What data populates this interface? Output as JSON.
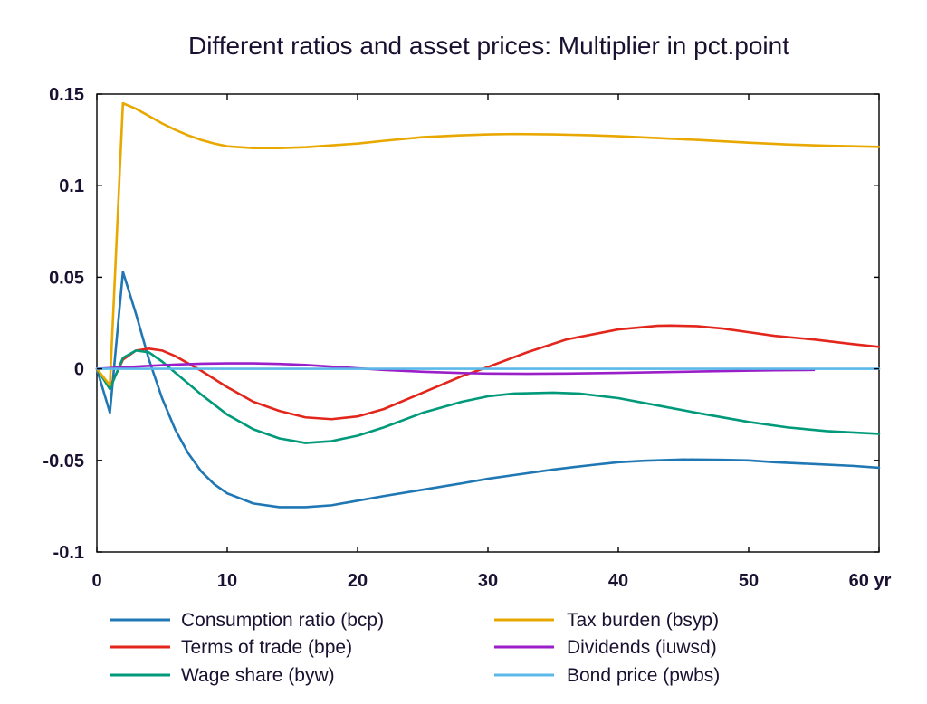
{
  "chart_data": {
    "type": "line",
    "title": "Different ratios and asset prices: Multiplier in pct.point",
    "xlabel": "",
    "ylabel": "",
    "xlim": [
      0,
      60
    ],
    "ylim": [
      -0.1,
      0.15
    ],
    "x_ticks": [
      0,
      10,
      20,
      30,
      40,
      50,
      60
    ],
    "x_tick_labels": [
      "0",
      "10",
      "20",
      "30",
      "40",
      "50",
      "60 yr"
    ],
    "y_ticks": [
      -0.1,
      -0.05,
      0,
      0.05,
      0.1,
      0.15
    ],
    "y_tick_labels": [
      "-0.1",
      "-0.05",
      "0",
      "0.05",
      "0.1",
      "0.15"
    ],
    "grid": false,
    "legend_position": "bottom",
    "series": [
      {
        "name": "Consumption ratio (bcp)",
        "color": "#1f77b4",
        "x": [
          0,
          1,
          2,
          3,
          4,
          5,
          6,
          7,
          8,
          9,
          10,
          12,
          14,
          16,
          18,
          20,
          22,
          25,
          28,
          30,
          32,
          35,
          38,
          40,
          42,
          45,
          48,
          50,
          52,
          55,
          58,
          60
        ],
        "y": [
          0,
          -0.024,
          0.053,
          0.03,
          0.005,
          -0.016,
          -0.033,
          -0.046,
          -0.056,
          -0.063,
          -0.068,
          -0.0735,
          -0.0755,
          -0.0755,
          -0.0745,
          -0.072,
          -0.0695,
          -0.066,
          -0.0625,
          -0.06,
          -0.058,
          -0.055,
          -0.0525,
          -0.051,
          -0.0502,
          -0.0495,
          -0.0497,
          -0.05,
          -0.051,
          -0.052,
          -0.053,
          -0.054
        ]
      },
      {
        "name": "Terms of trade (bpe)",
        "color": "#e3261b",
        "x": [
          0,
          1,
          2,
          3,
          4,
          5,
          6,
          8,
          10,
          12,
          14,
          16,
          18,
          20,
          22,
          25,
          28,
          30,
          33,
          36,
          40,
          43,
          44,
          46,
          48,
          50,
          52,
          55,
          58,
          60
        ],
        "y": [
          0,
          -0.01,
          0.005,
          0.01,
          0.011,
          0.01,
          0.007,
          -0.001,
          -0.01,
          -0.018,
          -0.023,
          -0.0265,
          -0.0275,
          -0.026,
          -0.022,
          -0.013,
          -0.004,
          0.001,
          0.009,
          0.016,
          0.0215,
          0.0235,
          0.0236,
          0.0233,
          0.022,
          0.02,
          0.018,
          0.016,
          0.0135,
          0.012
        ]
      },
      {
        "name": "Wage share (byw)",
        "color": "#00997a",
        "x": [
          0,
          1,
          2,
          3,
          4,
          5,
          6,
          8,
          10,
          12,
          14,
          16,
          18,
          20,
          22,
          25,
          28,
          30,
          32,
          35,
          37,
          40,
          43,
          46,
          50,
          53,
          56,
          60
        ],
        "y": [
          0,
          -0.011,
          0.006,
          0.01,
          0.009,
          0.004,
          -0.002,
          -0.014,
          -0.025,
          -0.033,
          -0.038,
          -0.0405,
          -0.0395,
          -0.0365,
          -0.032,
          -0.024,
          -0.018,
          -0.015,
          -0.0135,
          -0.013,
          -0.0135,
          -0.016,
          -0.02,
          -0.024,
          -0.029,
          -0.032,
          -0.034,
          -0.0355
        ]
      },
      {
        "name": "Tax burden (bsyp)",
        "color": "#e8a800",
        "x": [
          0,
          1,
          2,
          3,
          4,
          5,
          6,
          7,
          8,
          9,
          10,
          12,
          14,
          16,
          18,
          20,
          22,
          25,
          28,
          30,
          32,
          35,
          38,
          40,
          43,
          46,
          50,
          53,
          56,
          60
        ],
        "y": [
          0,
          -0.009,
          0.145,
          0.142,
          0.138,
          0.134,
          0.1305,
          0.1275,
          0.125,
          0.123,
          0.1215,
          0.1205,
          0.1205,
          0.121,
          0.122,
          0.123,
          0.1245,
          0.1265,
          0.1275,
          0.128,
          0.1282,
          0.128,
          0.1275,
          0.127,
          0.126,
          0.125,
          0.1235,
          0.1225,
          0.1218,
          0.1212
        ]
      },
      {
        "name": "Dividends (iuwsd)",
        "color": "#9b1fc8",
        "x": [
          0,
          2,
          4,
          6,
          8,
          10,
          12,
          14,
          16,
          18,
          20,
          22,
          25,
          28,
          30,
          33,
          36,
          40,
          44,
          48,
          52,
          55
        ],
        "y": [
          0,
          0.0008,
          0.0016,
          0.0023,
          0.0028,
          0.003,
          0.003,
          0.0027,
          0.0021,
          0.0012,
          0.0003,
          -0.0006,
          -0.0016,
          -0.0023,
          -0.0026,
          -0.0027,
          -0.0026,
          -0.0022,
          -0.0017,
          -0.0012,
          -0.0008,
          -0.0006
        ]
      },
      {
        "name": "Bond price (pwbs)",
        "color": "#5bb8e8",
        "x": [
          0,
          60
        ],
        "y": [
          0,
          0
        ]
      }
    ]
  }
}
